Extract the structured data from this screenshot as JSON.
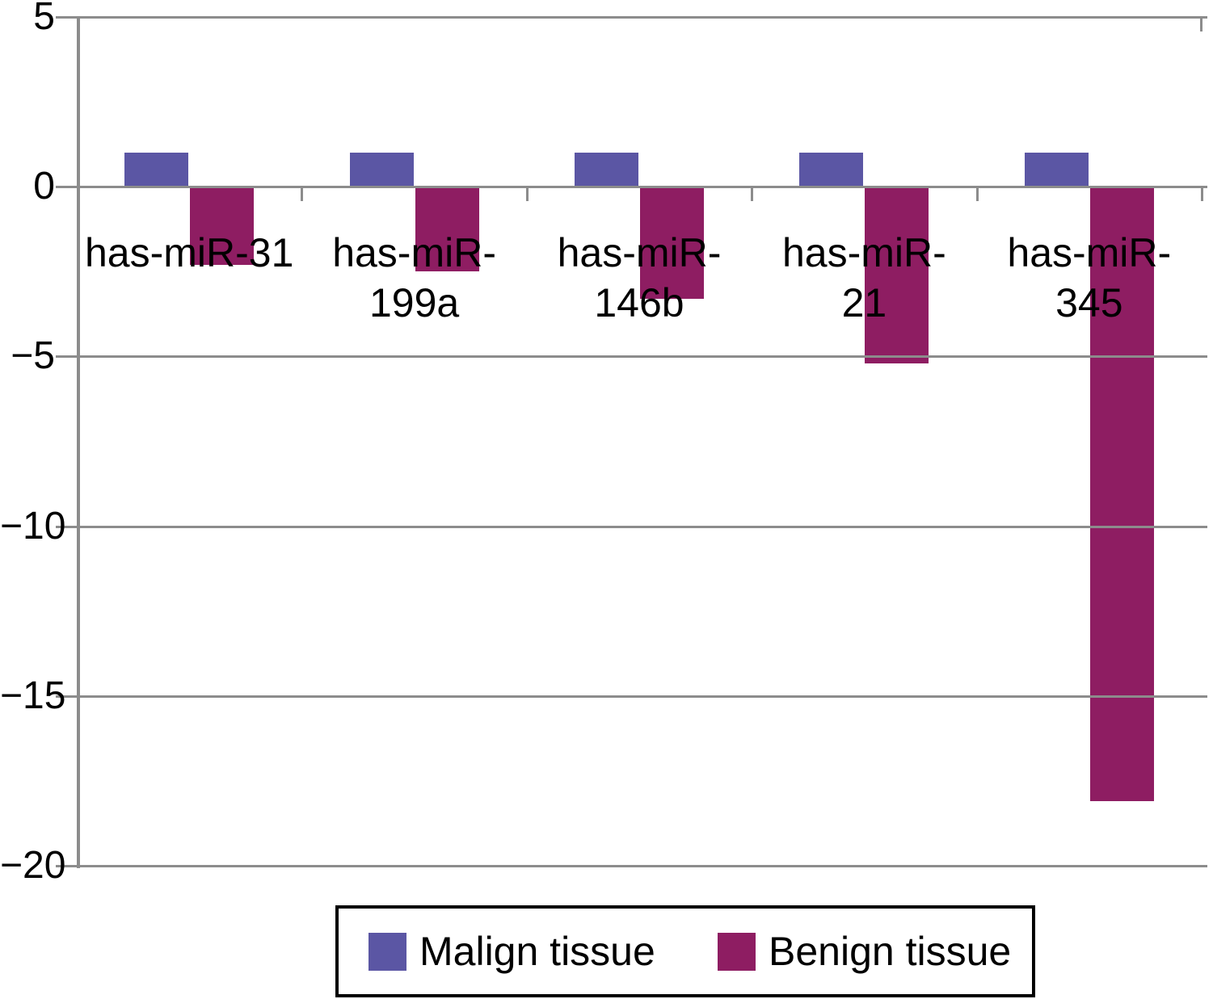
{
  "figure": {
    "background": "#ffffff",
    "axis_color": "#8c8c8c",
    "text_color": "#000000"
  },
  "chart_data": {
    "type": "bar",
    "title": "",
    "xlabel": "",
    "ylabel": "",
    "categories": [
      "has-miR-31",
      "has-miR-199a",
      "has-miR-146b",
      "has-miR-21",
      "has-miR-345"
    ],
    "category_label_lines": [
      [
        "has-miR-31"
      ],
      [
        "has-miR-",
        "199a"
      ],
      [
        "has-miR-",
        "146b"
      ],
      [
        "has-miR-",
        "21"
      ],
      [
        "has-miR-",
        "345"
      ]
    ],
    "series": [
      {
        "name": "Malign tissue",
        "color": "#5b56a4",
        "values": [
          1.0,
          1.0,
          1.0,
          1.0,
          1.0
        ]
      },
      {
        "name": "Benign tissue",
        "color": "#8e1d62",
        "values": [
          -2.3,
          -2.5,
          -3.3,
          -5.2,
          -18.1
        ]
      }
    ],
    "ylim": [
      -20,
      5
    ],
    "yticks": [
      5,
      0,
      -5,
      -10,
      -15,
      -20
    ],
    "ytick_labels": [
      "5",
      "0",
      "−5",
      "−10",
      "−15",
      "−20"
    ],
    "grid": "horizontal",
    "legend_position": "bottom"
  },
  "legend": {
    "items": [
      {
        "label": "Malign tissue",
        "color": "#5b56a4"
      },
      {
        "label": "Benign tissue",
        "color": "#8e1d62"
      }
    ]
  }
}
